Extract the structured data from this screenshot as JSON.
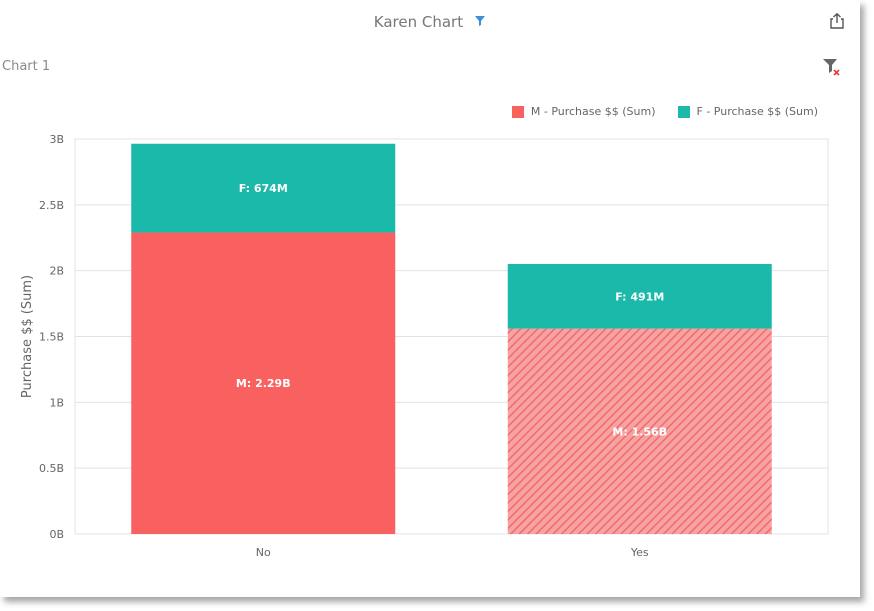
{
  "header": {
    "title": "Karen Chart",
    "subtitle": "Chart 1",
    "filter_icon": "filter-icon",
    "export_icon": "export-icon",
    "clear_filter_icon": "clear-filter-icon"
  },
  "colors": {
    "male": "#f96060",
    "female": "#1bb9a9",
    "grid": "#e3e3e3",
    "axis_text": "#666666",
    "accent": "#3a8fd6"
  },
  "chart_data": {
    "type": "bar",
    "stacked": true,
    "categories": [
      "No",
      "Yes"
    ],
    "series": [
      {
        "name": "M - Purchase $$ (Sum)",
        "values": [
          2.29,
          1.56
        ],
        "labels": [
          "M: 2.29B",
          "M: 1.56B"
        ]
      },
      {
        "name": "F - Purchase $$ (Sum)",
        "values": [
          0.674,
          0.491
        ],
        "labels": [
          "F: 674M",
          "F: 491M"
        ]
      }
    ],
    "hatched": [
      false,
      true
    ],
    "ylabel": "Purchase $$ (Sum)",
    "xlabel": "",
    "ylim": [
      0,
      3
    ],
    "yticks": [
      "0B",
      "0.5B",
      "1B",
      "1.5B",
      "2B",
      "2.5B",
      "3B"
    ],
    "grid": true,
    "legend": "top-right"
  }
}
